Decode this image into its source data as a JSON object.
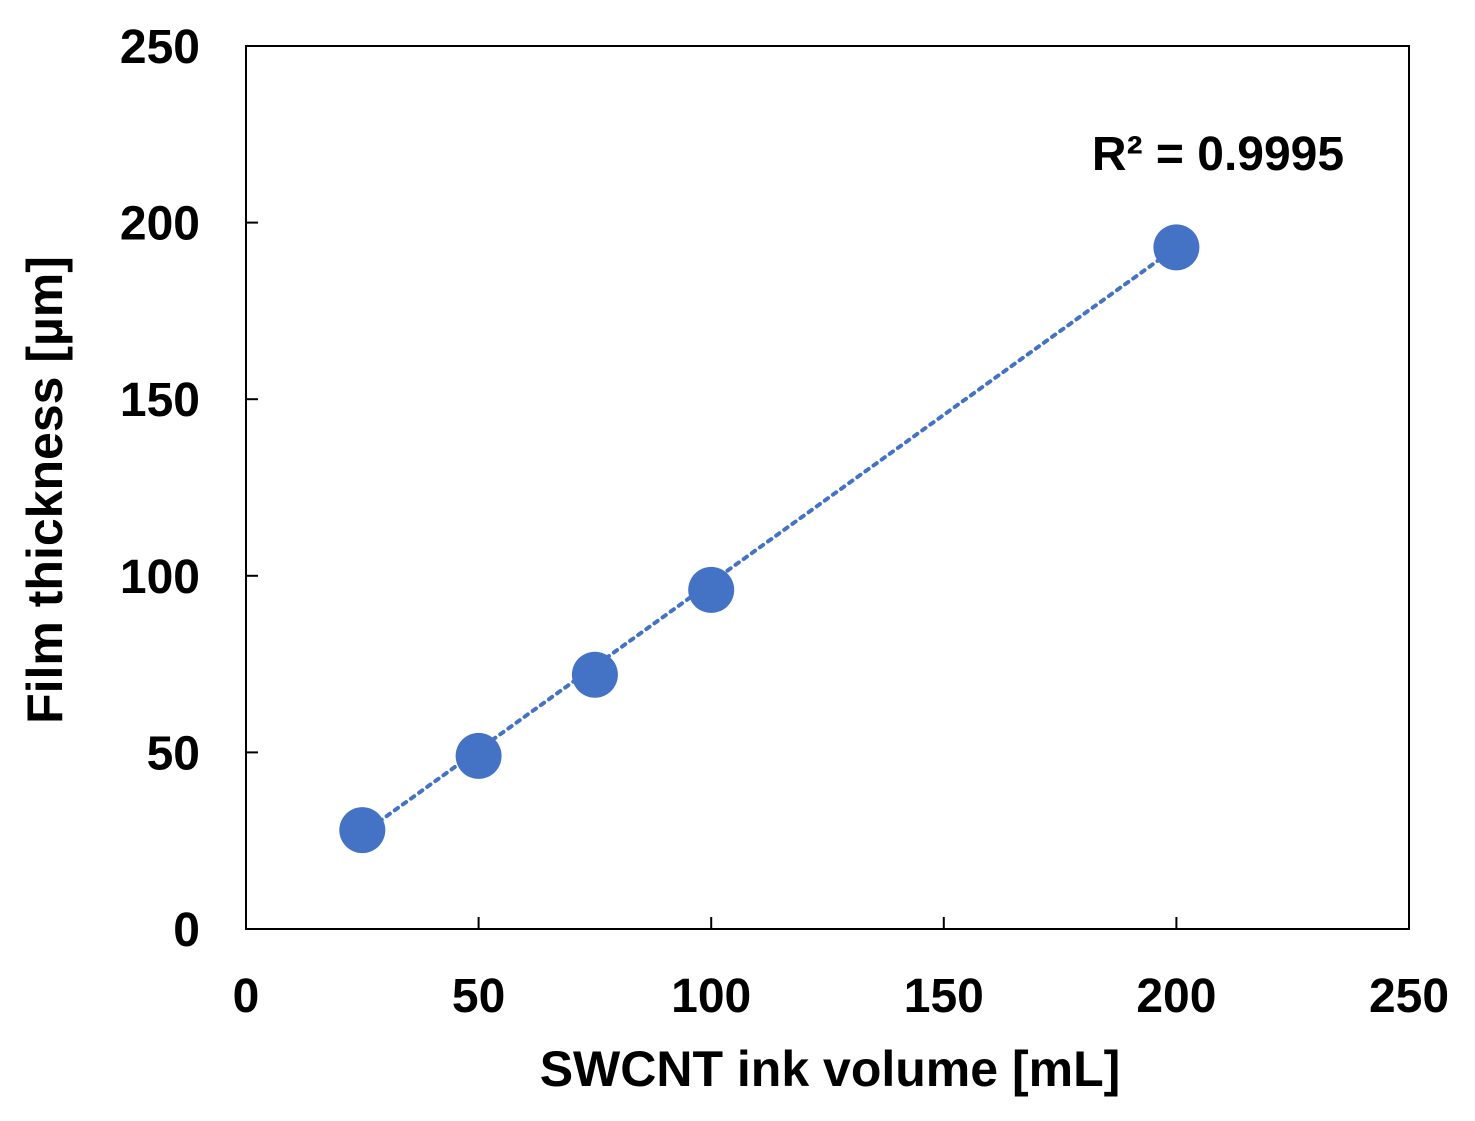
{
  "chart_data": {
    "type": "scatter",
    "title": "",
    "xlabel": "SWCNT ink volume [mL]",
    "ylabel": "Film thickness [µm]",
    "xlim": [
      0,
      250
    ],
    "ylim": [
      0,
      250
    ],
    "xticks": [
      0,
      50,
      100,
      150,
      200,
      250
    ],
    "yticks": [
      0,
      50,
      100,
      150,
      200,
      250
    ],
    "grid": false,
    "legend": "none",
    "series": [
      {
        "name": "Film thickness",
        "marker": "circle",
        "color": "#4472C4",
        "x": [
          25,
          50,
          75,
          100,
          200
        ],
        "y": [
          28,
          49,
          72,
          96,
          193
        ]
      }
    ],
    "trendline": {
      "style": "dotted",
      "color": "#4472C4",
      "x_start": 25,
      "x_end": 200,
      "y_start": 27,
      "y_end": 193
    },
    "annotations": [
      {
        "text": "R² = 0.9995",
        "placement": "top-right"
      }
    ]
  }
}
